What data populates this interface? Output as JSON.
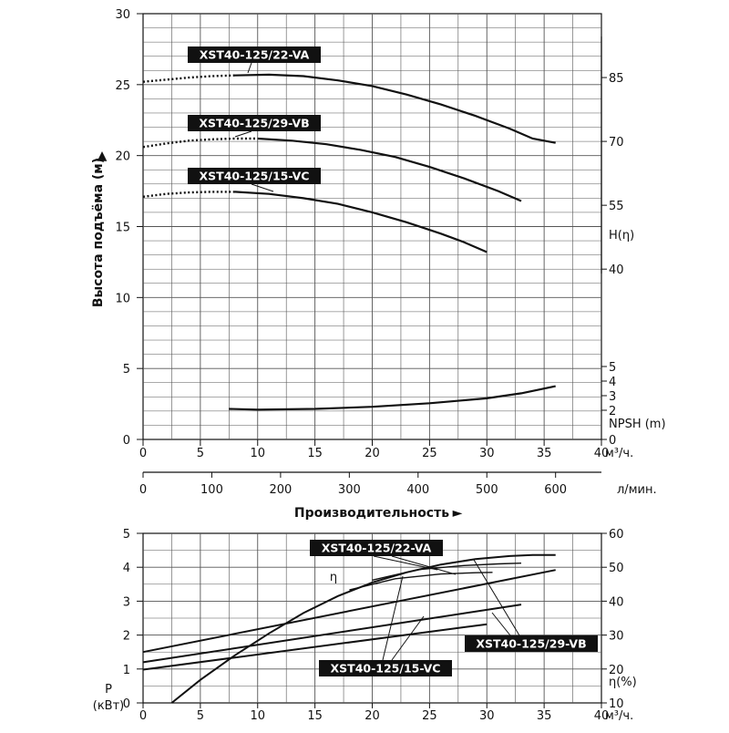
{
  "chart_data": [
    {
      "type": "line",
      "panel": "head",
      "ylabel": "Высота подъёма (м)",
      "xlabel": "Производительность",
      "xlim": [
        0,
        40
      ],
      "ylim": [
        0,
        30
      ],
      "x_ticks": [
        "0",
        "5",
        "10",
        "15",
        "20",
        "25",
        "30",
        "35",
        "40"
      ],
      "x_unit": "м³/ч.",
      "y_ticks": [
        "0",
        "5",
        "10",
        "15",
        "20",
        "25",
        "30"
      ],
      "secondary_x": {
        "ticks": [
          "0",
          "100",
          "200",
          "300",
          "400",
          "500",
          "600"
        ],
        "values": [
          0,
          100,
          200,
          300,
          400,
          500,
          600
        ],
        "unit": "л/мин.",
        "factor_m3h_to_lmin": 16.667
      },
      "right_eff_label": "H(η)",
      "right_eff_ticks": [
        {
          "label": "85",
          "at_y": 25.5
        },
        {
          "label": "70",
          "at_y": 21
        },
        {
          "label": "55",
          "at_y": 16.5
        },
        {
          "label": "40",
          "at_y": 12
        }
      ],
      "right_npsh_label": "NPSH (m)",
      "right_npsh_ticks": [
        "0",
        "2",
        "3",
        "4",
        "5"
      ],
      "series": [
        {
          "name": "XST40-125/22-VA",
          "dotted": {
            "x": [
              0,
              2,
              4,
              6,
              8
            ],
            "y": [
              25.2,
              25.35,
              25.5,
              25.6,
              25.65
            ]
          },
          "x": [
            8,
            11,
            14,
            17,
            20,
            23,
            26,
            29,
            32,
            34,
            36
          ],
          "y": [
            25.65,
            25.7,
            25.6,
            25.3,
            24.9,
            24.3,
            23.6,
            22.8,
            21.9,
            21.2,
            20.9
          ]
        },
        {
          "name": "XST40-125/29-VB",
          "dotted": {
            "x": [
              0,
              2,
              4,
              6,
              8,
              10
            ],
            "y": [
              20.6,
              20.85,
              21.05,
              21.15,
              21.2,
              21.2
            ]
          },
          "x": [
            10,
            13,
            16,
            19,
            22,
            25,
            28,
            31,
            33
          ],
          "y": [
            21.2,
            21.05,
            20.8,
            20.4,
            19.9,
            19.2,
            18.4,
            17.5,
            16.8
          ]
        },
        {
          "name": "XST40-125/15-VC",
          "dotted": {
            "x": [
              0,
              2,
              4,
              6,
              8
            ],
            "y": [
              17.1,
              17.3,
              17.4,
              17.45,
              17.45
            ]
          },
          "x": [
            8,
            11,
            14,
            17,
            20,
            23,
            26,
            28,
            30
          ],
          "y": [
            17.45,
            17.3,
            17.0,
            16.6,
            16.0,
            15.3,
            14.5,
            13.9,
            13.2
          ]
        },
        {
          "name": "NPSH",
          "x": [
            7.5,
            10,
            15,
            20,
            25,
            30,
            33,
            36
          ],
          "y": [
            2.15,
            2.1,
            2.15,
            2.3,
            2.55,
            2.9,
            3.25,
            3.75
          ]
        }
      ]
    },
    {
      "type": "line",
      "panel": "power",
      "ylabel": "P (кВт)",
      "xlim": [
        0,
        40
      ],
      "ylim": [
        0,
        5
      ],
      "x_ticks": [
        "0",
        "5",
        "10",
        "15",
        "20",
        "25",
        "30",
        "35",
        "40"
      ],
      "x_unit": "м³/ч.",
      "y_ticks": [
        "0",
        "1",
        "2",
        "3",
        "4",
        "5"
      ],
      "right_label": "η(%)",
      "right_ticks": [
        "10",
        "20",
        "30",
        "40",
        "50",
        "60"
      ],
      "right_lim": [
        10,
        60
      ],
      "series": [
        {
          "name": "XST40-125/22-VA",
          "x": [
            0,
            36
          ],
          "y": [
            1.5,
            3.92
          ]
        },
        {
          "name": "XST40-125/29-VB",
          "x": [
            0,
            33
          ],
          "y": [
            1.2,
            2.9
          ]
        },
        {
          "name": "XST40-125/15-VC",
          "x": [
            0,
            30
          ],
          "y": [
            0.98,
            2.32
          ]
        },
        {
          "name": "η",
          "axis": "right",
          "x": [
            2.5,
            5,
            8,
            11,
            14,
            17,
            20,
            23,
            26,
            29,
            32,
            34,
            36
          ],
          "y": [
            10.0,
            16.8,
            24.0,
            30.5,
            36.5,
            41.5,
            45.5,
            48.5,
            50.8,
            52.4,
            53.3,
            53.6,
            53.6
          ]
        },
        {
          "name": "η-22-VA-tail",
          "axis": "right",
          "x": [
            20,
            24,
            28,
            31,
            33
          ],
          "y": [
            46.2,
            49.3,
            50.5,
            51.0,
            51.2
          ]
        },
        {
          "name": "η-29-VB-tail",
          "axis": "right",
          "x": [
            18,
            22,
            26,
            29,
            30.5
          ],
          "y": [
            43.3,
            46.6,
            48.0,
            48.4,
            48.5
          ]
        }
      ]
    }
  ],
  "labels": {
    "head_badges": [
      "XST40-125/22-VA",
      "XST40-125/29-VB",
      "XST40-125/15-VC"
    ],
    "power_badges": [
      "XST40-125/22-VA",
      "XST40-125/29-VB",
      "XST40-125/15-VC"
    ],
    "eta_symbol": "η",
    "arrow_up": "▲",
    "arrow_right": "►"
  },
  "colors": {
    "line": "#111111",
    "grid": "#555555",
    "badge_bg": "#111111",
    "badge_fg": "#ffffff"
  }
}
